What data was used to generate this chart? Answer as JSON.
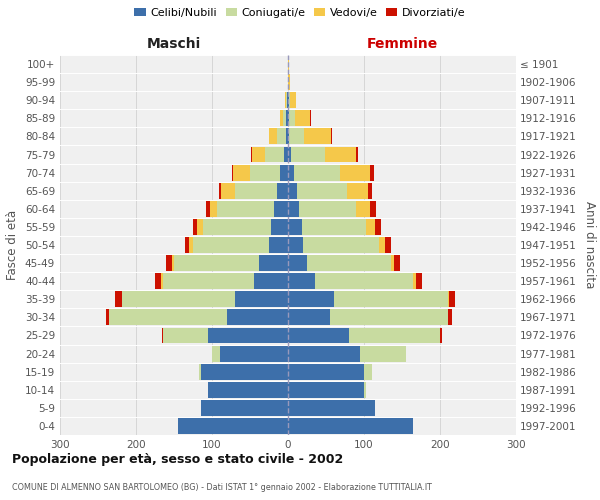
{
  "age_groups": [
    "0-4",
    "5-9",
    "10-14",
    "15-19",
    "20-24",
    "25-29",
    "30-34",
    "35-39",
    "40-44",
    "45-49",
    "50-54",
    "55-59",
    "60-64",
    "65-69",
    "70-74",
    "75-79",
    "80-84",
    "85-89",
    "90-94",
    "95-99",
    "100+"
  ],
  "birth_years": [
    "1997-2001",
    "1992-1996",
    "1987-1991",
    "1982-1986",
    "1977-1981",
    "1972-1976",
    "1967-1971",
    "1962-1966",
    "1957-1961",
    "1952-1956",
    "1947-1951",
    "1942-1946",
    "1937-1941",
    "1932-1936",
    "1927-1931",
    "1922-1926",
    "1917-1921",
    "1912-1916",
    "1907-1911",
    "1902-1906",
    "≤ 1901"
  ],
  "male_celibe": [
    145,
    115,
    105,
    115,
    90,
    105,
    80,
    70,
    45,
    38,
    25,
    22,
    18,
    15,
    10,
    5,
    3,
    2,
    1,
    0,
    0
  ],
  "male_coniugato": [
    0,
    0,
    0,
    2,
    10,
    60,
    155,
    148,
    120,
    112,
    100,
    90,
    75,
    55,
    40,
    25,
    12,
    5,
    2,
    0,
    0
  ],
  "male_vedovo": [
    0,
    0,
    0,
    0,
    0,
    0,
    0,
    1,
    2,
    3,
    5,
    8,
    10,
    18,
    22,
    18,
    10,
    3,
    1,
    0,
    0
  ],
  "male_divorziato": [
    0,
    0,
    0,
    0,
    0,
    1,
    5,
    8,
    8,
    8,
    5,
    5,
    5,
    3,
    2,
    1,
    0,
    0,
    0,
    0,
    0
  ],
  "female_celibe": [
    165,
    115,
    100,
    100,
    95,
    80,
    55,
    60,
    35,
    25,
    20,
    18,
    15,
    12,
    8,
    4,
    1,
    1,
    1,
    0,
    0
  ],
  "female_coniugata": [
    0,
    0,
    2,
    10,
    60,
    120,
    155,
    150,
    130,
    110,
    100,
    85,
    75,
    65,
    60,
    45,
    20,
    8,
    2,
    0,
    0
  ],
  "female_vedova": [
    0,
    0,
    0,
    0,
    0,
    0,
    1,
    2,
    3,
    5,
    8,
    12,
    18,
    28,
    40,
    40,
    35,
    20,
    8,
    2,
    1
  ],
  "female_divorziata": [
    0,
    0,
    0,
    0,
    0,
    2,
    5,
    8,
    8,
    8,
    8,
    8,
    8,
    5,
    5,
    3,
    2,
    1,
    0,
    0,
    0
  ],
  "colors": {
    "celibe": "#3d6faa",
    "coniugato": "#c8dba0",
    "vedovo": "#f5c84a",
    "divorziato": "#cc1100"
  },
  "xlim": 300,
  "title": "Popolazione per età, sesso e stato civile - 2002",
  "subtitle": "COMUNE DI ALMENNO SAN BARTOLOMEO (BG) - Dati ISTAT 1° gennaio 2002 - Elaborazione TUTTITALIA.IT",
  "legend_labels": [
    "Celibi/Nubili",
    "Coniugati/e",
    "Vedovi/e",
    "Divorziati/e"
  ],
  "label_maschi": "Maschi",
  "label_femmine": "Femmine",
  "ylabel_left": "Fasce di età",
  "ylabel_right": "Anni di nascita",
  "bg_color": "#f0f0f0"
}
